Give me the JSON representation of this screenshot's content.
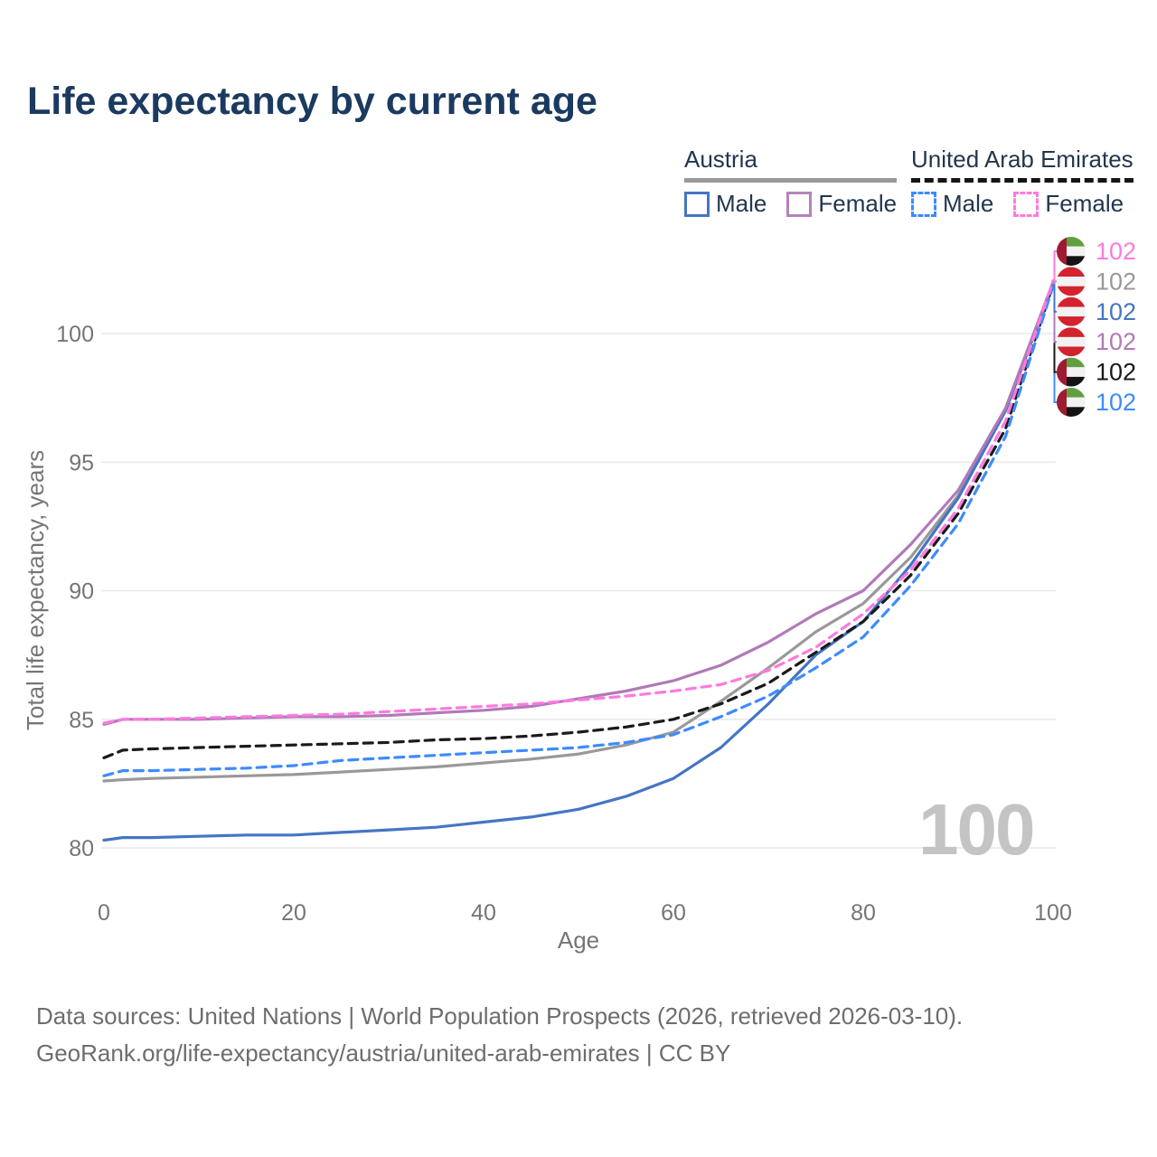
{
  "title": "Life expectancy by current age",
  "legend": {
    "groups": [
      {
        "label": "Austria",
        "line_style": "solid",
        "underline_color": "#999999",
        "items": [
          {
            "label": "Male",
            "color": "#4575c4"
          },
          {
            "label": "Female",
            "color": "#b583bb"
          }
        ]
      },
      {
        "label": "United Arab Emirates",
        "line_style": "dashed",
        "underline_color": "#151515",
        "items": [
          {
            "label": "Male",
            "color": "#3d8bff"
          },
          {
            "label": "Female",
            "color": "#ff7ade"
          }
        ]
      }
    ]
  },
  "watermark": "100",
  "footer": {
    "line1": "Data sources: United Nations | World Population Prospects (2026, retrieved 2026-03-10).",
    "line2": "GeoRank.org/life-expectancy/austria/united-arab-emirates | CC BY"
  },
  "chart_data": {
    "type": "line",
    "title": "Life expectancy by current age",
    "xlabel": "Age",
    "ylabel": "Total life expectancy, years",
    "xlim": [
      0,
      100
    ],
    "ylim": [
      79.5,
      102.6
    ],
    "xticks": [
      0,
      20,
      40,
      60,
      80,
      100
    ],
    "yticks": [
      80,
      85,
      90,
      95,
      100
    ],
    "grid": true,
    "legend_position": "top-right",
    "x": [
      0,
      2,
      5,
      10,
      15,
      20,
      25,
      30,
      35,
      40,
      45,
      50,
      55,
      60,
      65,
      70,
      75,
      80,
      85,
      90,
      95,
      100
    ],
    "series": [
      {
        "id": "austria-total",
        "name": "Austria (both sexes)",
        "country": "Austria",
        "color": "#999999",
        "dashed": false,
        "flag": "austria",
        "slot": 1,
        "end_label": "102",
        "values": [
          82.6,
          82.65,
          82.7,
          82.75,
          82.8,
          82.85,
          82.95,
          83.05,
          83.15,
          83.3,
          83.45,
          83.65,
          84.0,
          84.5,
          85.7,
          87.0,
          88.4,
          89.5,
          91.3,
          93.7,
          97.0,
          101.95
        ]
      },
      {
        "id": "austria-male",
        "name": "Austria Male",
        "country": "Austria",
        "color": "#4575c4",
        "dashed": false,
        "flag": "austria",
        "slot": 2,
        "end_label": "102",
        "values": [
          80.3,
          80.4,
          80.4,
          80.45,
          80.5,
          80.5,
          80.6,
          80.7,
          80.8,
          81.0,
          81.2,
          81.5,
          82.0,
          82.7,
          83.9,
          85.6,
          87.5,
          88.8,
          91.0,
          93.6,
          97.0,
          101.9
        ]
      },
      {
        "id": "austria-female",
        "name": "Austria Female",
        "country": "Austria",
        "color": "#b07ab8",
        "dashed": false,
        "flag": "austria",
        "slot": 3,
        "end_label": "102",
        "values": [
          84.8,
          85.0,
          85.0,
          85.0,
          85.05,
          85.1,
          85.1,
          85.15,
          85.25,
          85.35,
          85.5,
          85.8,
          86.1,
          86.5,
          87.1,
          88.0,
          89.1,
          90.0,
          91.8,
          93.9,
          97.1,
          102.0
        ]
      },
      {
        "id": "uae-total",
        "name": "United Arab Emirates (both sexes)",
        "country": "United Arab Emirates",
        "color": "#1a1a1a",
        "dashed": true,
        "flag": "uae",
        "slot": 4,
        "end_label": "102",
        "values": [
          83.5,
          83.8,
          83.85,
          83.9,
          83.95,
          84.0,
          84.05,
          84.1,
          84.2,
          84.25,
          84.35,
          84.5,
          84.7,
          85.0,
          85.6,
          86.4,
          87.6,
          88.8,
          90.6,
          93.0,
          96.3,
          101.9
        ]
      },
      {
        "id": "uae-male",
        "name": "United Arab Emirates Male",
        "country": "United Arab Emirates",
        "color": "#3d8bff",
        "dashed": true,
        "flag": "uae",
        "slot": 5,
        "end_label": "102",
        "values": [
          82.8,
          83.0,
          83.0,
          83.05,
          83.1,
          83.2,
          83.4,
          83.5,
          83.6,
          83.7,
          83.8,
          83.9,
          84.1,
          84.4,
          85.1,
          85.9,
          87.0,
          88.2,
          90.2,
          92.6,
          96.0,
          101.85
        ]
      },
      {
        "id": "uae-female",
        "name": "United Arab Emirates Female",
        "country": "United Arab Emirates",
        "color": "#ff7ade",
        "dashed": true,
        "flag": "uae",
        "slot": 0,
        "end_label": "102",
        "values": [
          84.85,
          85.0,
          85.0,
          85.05,
          85.1,
          85.15,
          85.2,
          85.3,
          85.4,
          85.5,
          85.6,
          85.75,
          85.9,
          86.1,
          86.35,
          86.9,
          87.8,
          89.1,
          90.8,
          93.2,
          96.6,
          102.05
        ]
      }
    ],
    "flag_colors": {
      "austria": {
        "red": "#d2232e",
        "white": "#f2f2f2"
      },
      "uae": {
        "red": "#9e1b32",
        "green": "#61a041",
        "white": "#f2f2f2",
        "black": "#141414"
      }
    },
    "grid_color": "#e9e9e9",
    "tick_color": "#757575"
  }
}
